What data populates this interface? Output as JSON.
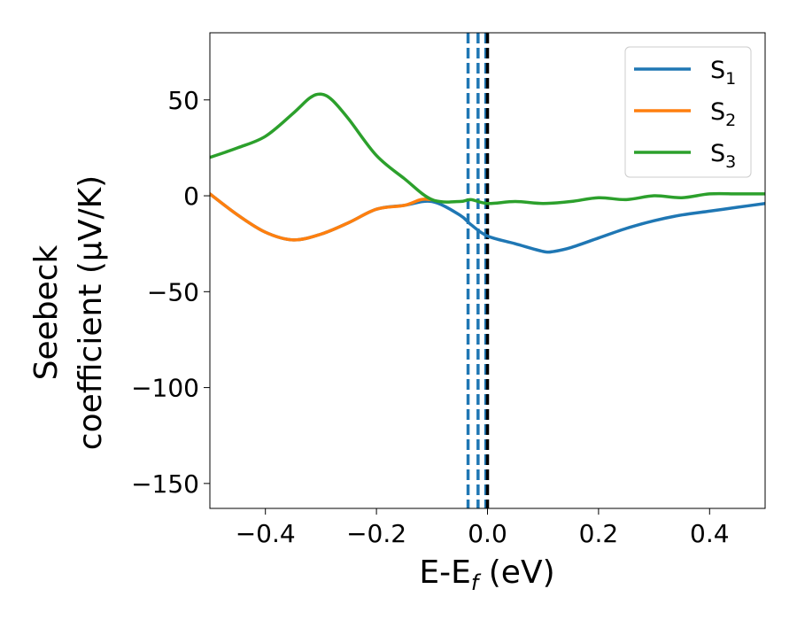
{
  "chart_data": {
    "type": "line",
    "xlabel": "E-E",
    "xlabel_sub": "f",
    "xlabel_unit": " (eV)",
    "ylabel_line1": "Seebeck",
    "ylabel_line2": "coefficient  (μV/K)",
    "xlim": [
      -0.5,
      0.5
    ],
    "ylim": [
      -163,
      85
    ],
    "x_ticks": [
      -0.4,
      -0.2,
      0.0,
      0.2,
      0.4
    ],
    "x_tick_labels": [
      "−0.4",
      "−0.2",
      "0.0",
      "0.2",
      "0.4"
    ],
    "y_ticks": [
      50,
      0,
      -50,
      -100,
      -150
    ],
    "y_tick_labels": [
      "50",
      "0",
      "−50",
      "−100",
      "−150"
    ],
    "grid": false,
    "legend_position": "top-right",
    "series": [
      {
        "name": "S",
        "name_sub": "1",
        "color": "#1f77b4",
        "x": [
          -0.5,
          -0.45,
          -0.4,
          -0.35,
          -0.3,
          -0.25,
          -0.2,
          -0.15,
          -0.1,
          -0.05,
          -0.03,
          0.0,
          0.05,
          0.1,
          0.12,
          0.15,
          0.2,
          0.25,
          0.3,
          0.35,
          0.4,
          0.45,
          0.5
        ],
        "values": [
          1,
          -10,
          -19,
          -23,
          -20,
          -14,
          -7,
          -5,
          -3,
          -10,
          -15,
          -21,
          -25,
          -29,
          -29,
          -27,
          -22,
          -17,
          -13,
          -10,
          -8,
          -6,
          -4
        ]
      },
      {
        "name": "S",
        "name_sub": "2",
        "color": "#ff7f0e",
        "x": [
          -0.5,
          -0.45,
          -0.4,
          -0.35,
          -0.3,
          -0.25,
          -0.2,
          -0.15,
          -0.12,
          -0.1
        ],
        "values": [
          1,
          -10,
          -19,
          -23,
          -20,
          -14,
          -7,
          -5,
          -2,
          -2
        ]
      },
      {
        "name": "S",
        "name_sub": "3",
        "color": "#2ca02c",
        "x": [
          -0.5,
          -0.45,
          -0.4,
          -0.35,
          -0.32,
          -0.3,
          -0.28,
          -0.25,
          -0.2,
          -0.15,
          -0.1,
          -0.05,
          -0.03,
          0.0,
          0.05,
          0.1,
          0.15,
          0.2,
          0.25,
          0.3,
          0.35,
          0.4,
          0.45,
          0.5
        ],
        "values": [
          20,
          25,
          31,
          43,
          51,
          53,
          50,
          40,
          21,
          9,
          -2,
          -3,
          -2,
          -4,
          -3,
          -4,
          -3,
          -1,
          -2,
          0,
          -1,
          1,
          1,
          1
        ]
      }
    ],
    "vlines": [
      {
        "x": -0.035,
        "color": "#1f77b4",
        "style": "dashed"
      },
      {
        "x": -0.017,
        "color": "#1f77b4",
        "style": "dashed"
      },
      {
        "x": -0.003,
        "color": "#1f77b4",
        "style": "dashed"
      },
      {
        "x": 0.0,
        "color": "#000000",
        "style": "dashed"
      }
    ]
  }
}
